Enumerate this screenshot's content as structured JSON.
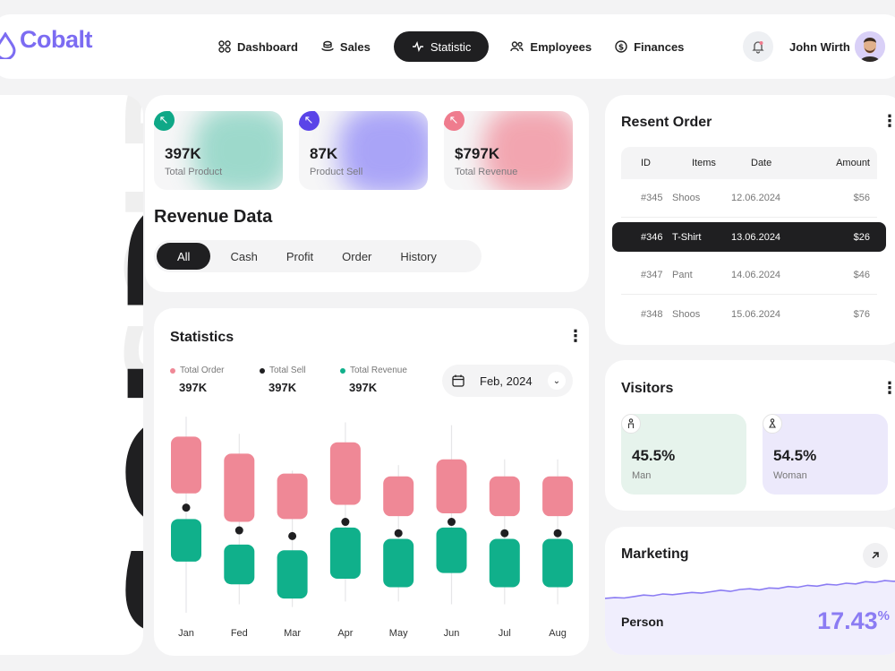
{
  "brand": {
    "name": "Cobalt",
    "color": "#7c6cf2"
  },
  "nav": [
    {
      "label": "Dashboard",
      "icon": "grid-icon"
    },
    {
      "label": "Sales",
      "icon": "coins-icon"
    },
    {
      "label": "Statistic",
      "icon": "activity-icon",
      "active": true
    },
    {
      "label": "Employees",
      "icon": "users-icon"
    },
    {
      "label": "Finances",
      "icon": "dollar-icon"
    }
  ],
  "user": {
    "name": "John Wirth"
  },
  "decor": {
    "word": "SOLD"
  },
  "stat_cards": [
    {
      "value": "397K",
      "label": "Total Product",
      "color": "#0fa887"
    },
    {
      "value": "87K",
      "label": "Product Sell",
      "color": "#5a44e8"
    },
    {
      "value": "$797K",
      "label": "Total Revenue",
      "color": "#ef7c8e"
    }
  ],
  "revenue": {
    "title": "Revenue Data",
    "filters": [
      "All",
      "Cash",
      "Profit",
      "Order",
      "History"
    ]
  },
  "statistics": {
    "title": "Statistics",
    "legend": [
      {
        "name": "Total Order",
        "value": "397K",
        "color": "#ef8896"
      },
      {
        "name": "Total Sell",
        "value": "397K",
        "color": "#1f1f21"
      },
      {
        "name": "Total Revenue",
        "value": "397K",
        "color": "#10b08b"
      }
    ],
    "date": "Feb, 2024"
  },
  "chart_data": {
    "type": "bar",
    "categories": [
      "Jan",
      "Fed",
      "Mar",
      "Apr",
      "May",
      "Jun",
      "Jul",
      "Aug"
    ],
    "series": [
      {
        "name": "Total Order",
        "values": [
          [
            4.2,
            6.2
          ],
          [
            3.2,
            5.6
          ],
          [
            3.3,
            4.9
          ],
          [
            3.8,
            6.0
          ],
          [
            3.4,
            4.8
          ],
          [
            3.5,
            5.4
          ],
          [
            3.4,
            4.8
          ],
          [
            3.4,
            4.8
          ]
        ]
      },
      {
        "name": "Total Sell",
        "values": [
          3.7,
          2.9,
          2.7,
          3.2,
          2.8,
          3.2,
          2.8,
          2.8
        ]
      },
      {
        "name": "Total Revenue",
        "values": [
          [
            1.8,
            3.3
          ],
          [
            1.0,
            2.4
          ],
          [
            0.5,
            2.2
          ],
          [
            1.2,
            3.0
          ],
          [
            0.9,
            2.6
          ],
          [
            1.4,
            3.0
          ],
          [
            0.9,
            2.6
          ],
          [
            0.9,
            2.6
          ]
        ]
      }
    ],
    "range": [
      [
        0,
        6.9
      ],
      [
        0.3,
        6.3
      ],
      [
        0.2,
        5.0
      ],
      [
        0.4,
        6.7
      ],
      [
        0.4,
        5.2
      ],
      [
        0.3,
        6.6
      ],
      [
        0.3,
        5.4
      ],
      [
        0.3,
        5.4
      ]
    ],
    "ylim": [
      0,
      7
    ]
  },
  "orders": {
    "title": "Resent Order",
    "headers": [
      "ID",
      "Items",
      "Date",
      "Amount"
    ],
    "rows": [
      {
        "id": "#345",
        "item": "Shoos",
        "date": "12.06.2024",
        "amount": "$56"
      },
      {
        "id": "#346",
        "item": "T-Shirt",
        "date": "13.06.2024",
        "amount": "$26",
        "selected": true
      },
      {
        "id": "#347",
        "item": "Pant",
        "date": "14.06.2024",
        "amount": "$46"
      },
      {
        "id": "#348",
        "item": "Shoos",
        "date": "15.06.2024",
        "amount": "$76"
      }
    ]
  },
  "visitors": {
    "title": "Visitors",
    "items": [
      {
        "value": "45.5%",
        "label": "Man",
        "bg": "#e6f3ec"
      },
      {
        "value": "54.5%",
        "label": "Woman",
        "bg": "#ece9fb"
      }
    ]
  },
  "marketing": {
    "title": "Marketing",
    "label": "Person",
    "value": "17.43",
    "unit": "%",
    "trend": [
      5,
      7,
      6,
      10,
      14,
      12,
      17,
      15,
      18,
      21,
      19,
      23,
      27,
      24,
      29,
      31,
      28,
      33,
      32,
      37,
      35,
      40,
      38,
      43,
      41,
      46,
      44,
      50,
      48,
      53,
      51,
      58
    ]
  }
}
